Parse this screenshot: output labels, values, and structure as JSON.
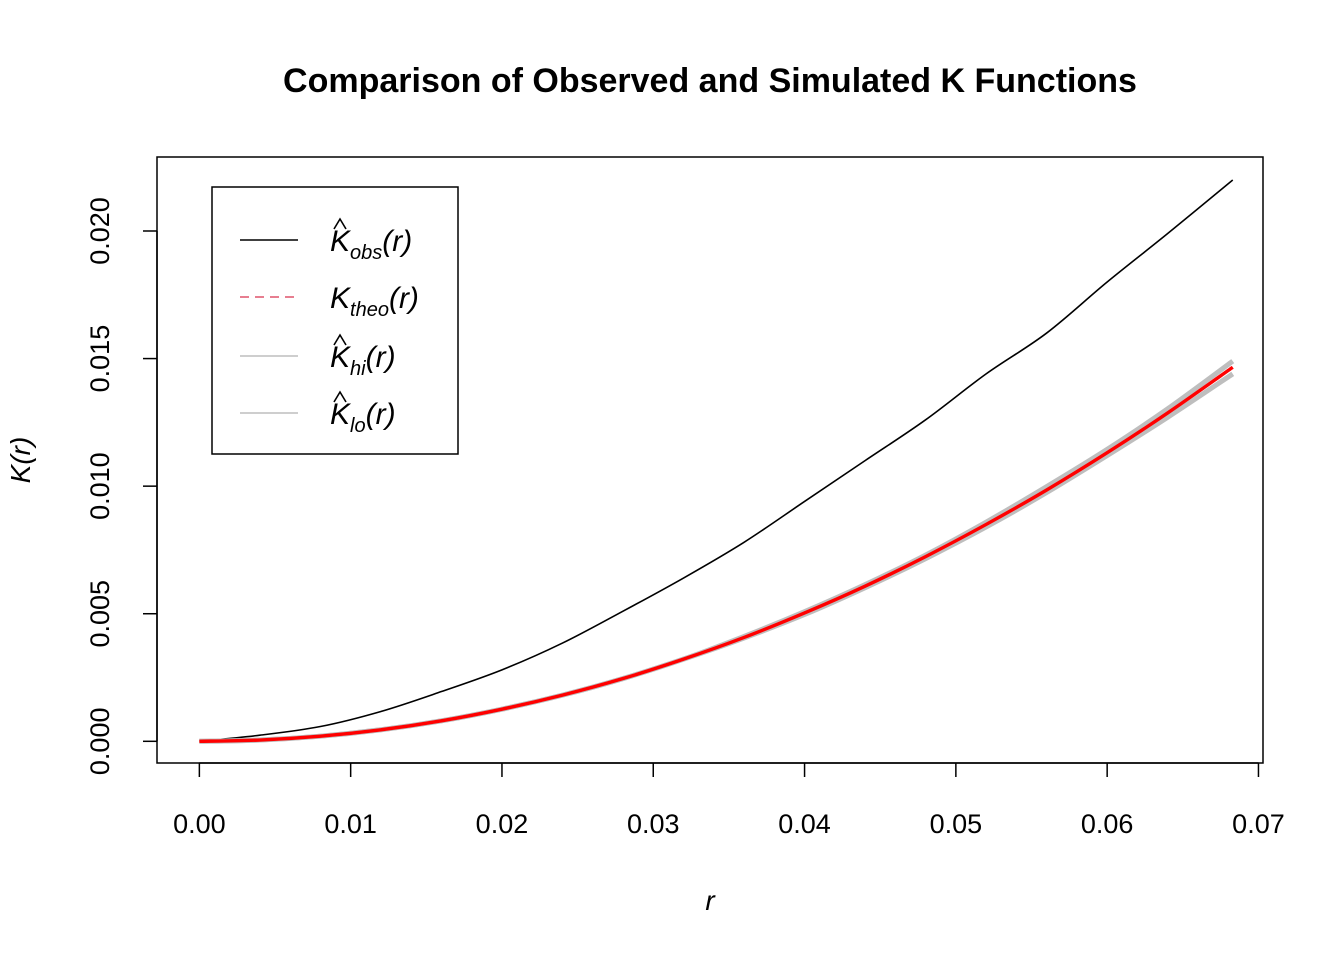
{
  "chart_data": {
    "type": "line",
    "title": "Comparison of Observed and Simulated K Functions",
    "xlabel": "r",
    "ylabel": "K(r)",
    "xlim": [
      -0.0028,
      0.0703
    ],
    "ylim": [
      -0.00085,
      0.0229
    ],
    "xticks": [
      0.0,
      0.01,
      0.02,
      0.03,
      0.04,
      0.05,
      0.06,
      0.07
    ],
    "xtick_labels": [
      "0.00",
      "0.01",
      "0.02",
      "0.03",
      "0.04",
      "0.05",
      "0.06",
      "0.07"
    ],
    "yticks": [
      0.0,
      0.005,
      0.01,
      0.015,
      0.02
    ],
    "ytick_labels": [
      "0.000",
      "0.005",
      "0.010",
      "0.015",
      "0.020"
    ],
    "grid": false,
    "legend_position": "top-left",
    "x": [
      0.0,
      0.004,
      0.008,
      0.012,
      0.016,
      0.02,
      0.024,
      0.028,
      0.032,
      0.036,
      0.04,
      0.044,
      0.048,
      0.052,
      0.056,
      0.06,
      0.064,
      0.0683
    ],
    "series": [
      {
        "key": "obs",
        "legend": {
          "base": "K",
          "hat": true,
          "sub": "obs",
          "tail": "(r)"
        },
        "color": "#000000",
        "style": "solid",
        "values": [
          0.0,
          0.00024,
          0.00058,
          0.00117,
          0.00195,
          0.0028,
          0.00385,
          0.0051,
          0.0064,
          0.0078,
          0.0094,
          0.011,
          0.0126,
          0.0144,
          0.016,
          0.018,
          0.0199,
          0.022
        ]
      },
      {
        "key": "hi",
        "legend": {
          "base": "K",
          "hat": true,
          "sub": "hi",
          "tail": "(r)"
        },
        "color": "#bebebe",
        "style": "solid",
        "values": [
          0.0,
          5.03e-05,
          0.000201,
          0.000452,
          0.000804,
          0.00126,
          0.00181,
          0.00246,
          0.00322,
          0.00411,
          0.00508,
          0.00614,
          0.0073,
          0.00859,
          0.00998,
          0.01144,
          0.01303,
          0.0149
        ]
      },
      {
        "key": "lo",
        "legend": {
          "base": "K",
          "hat": true,
          "sub": "lo",
          "tail": "(r)"
        },
        "color": "#bebebe",
        "style": "solid",
        "values": [
          0.0,
          5.03e-05,
          0.000201,
          0.000452,
          0.000804,
          0.00126,
          0.00181,
          0.00246,
          0.00322,
          0.00405,
          0.00497,
          0.00602,
          0.00716,
          0.0084,
          0.00975,
          0.0112,
          0.0127,
          0.0144
        ]
      },
      {
        "key": "theo",
        "legend": {
          "base": "K",
          "hat": false,
          "sub": "theo",
          "tail": "(r)"
        },
        "color": "#ff0000",
        "legend_color": "#df536b",
        "style": "dashed",
        "values": [
          0.0,
          5.03e-05,
          0.000201,
          0.000452,
          0.000804,
          0.00126,
          0.00181,
          0.00246,
          0.00322,
          0.00407,
          0.00503,
          0.00608,
          0.00724,
          0.0085,
          0.00985,
          0.01131,
          0.01287,
          0.01466
        ]
      }
    ]
  }
}
